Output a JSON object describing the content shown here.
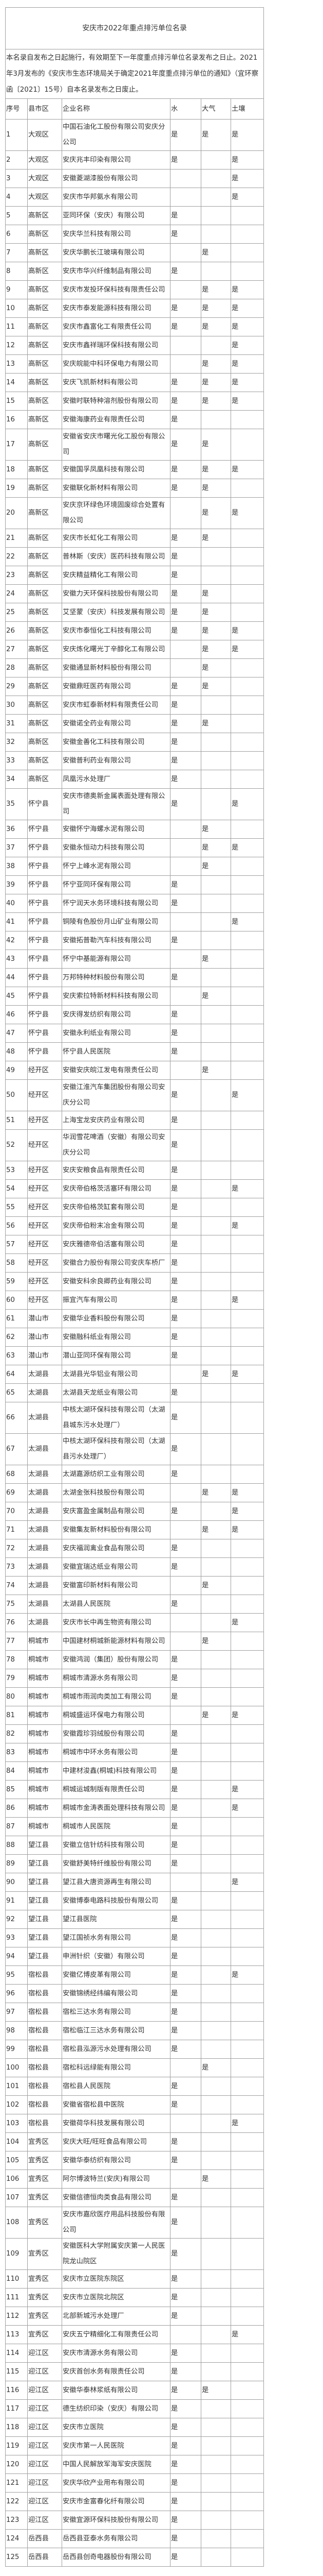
{
  "title": "安庆市2022年重点排污单位名录",
  "notice": "本名录自发布之日起施行，有效期至下一年度重点排污单位名录发布之日止。2021年3月发布的《安庆市生态环境局关于确定2021年度重点排污单位的通知》（宜环察函〔2021〕15号）自本名录发布之日废止。",
  "headers": [
    "序号",
    "县市区",
    "企业名称",
    "水",
    "大气",
    "土壤"
  ],
  "rows": [
    [
      "1",
      "大观区",
      "中国石油化工股份有限公司安庆分公司",
      "是",
      "是",
      "是"
    ],
    [
      "2",
      "大观区",
      "安庆兆丰印染有限公司",
      "是",
      "",
      "是"
    ],
    [
      "3",
      "大观区",
      "安徽菱湖漆股份有限公司",
      "",
      "",
      "是"
    ],
    [
      "4",
      "大观区",
      "安庆市华邦氨水有限公司",
      "",
      "",
      "是"
    ],
    [
      "5",
      "高新区",
      "亚同环保（安庆）有限公司",
      "是",
      "",
      ""
    ],
    [
      "6",
      "高新区",
      "安庆华兰科技有限公司",
      "是",
      "",
      ""
    ],
    [
      "7",
      "高新区",
      "安庆华鹏长江玻璃有限公司",
      "",
      "是",
      ""
    ],
    [
      "8",
      "高新区",
      "安庆市华兴纤维制品有限公司",
      "是",
      "",
      ""
    ],
    [
      "9",
      "高新区",
      "安庆市发投环保科技有限责任公司",
      "",
      "是",
      "是"
    ],
    [
      "10",
      "高新区",
      "安庆市泰发能源科技有限公司",
      "是",
      "是",
      "是"
    ],
    [
      "11",
      "高新区",
      "安庆市鑫富化工有限责任公司",
      "是",
      "是",
      "是"
    ],
    [
      "12",
      "高新区",
      "安庆市鑫祥瑞环保科技有限公司",
      "",
      "",
      "是"
    ],
    [
      "13",
      "高新区",
      "安庆皖能中科环保电力有限公司",
      "",
      "是",
      "是"
    ],
    [
      "14",
      "高新区",
      "安庆飞凯新材料有限公司",
      "是",
      "是",
      "是"
    ],
    [
      "15",
      "高新区",
      "安徽时联特种溶剂股份有限公司",
      "是",
      "是",
      "是"
    ],
    [
      "16",
      "高新区",
      "安徽海康药业有限责任公司",
      "是",
      "",
      ""
    ],
    [
      "17",
      "高新区",
      "安徽省安庆市曙光化工股份有限公司",
      "是",
      "是",
      ""
    ],
    [
      "18",
      "高新区",
      "安徽国孚凤凰科技有限公司",
      "是",
      "是",
      "是"
    ],
    [
      "19",
      "高新区",
      "安徽联化新材料有限公司",
      "是",
      "是",
      ""
    ],
    [
      "20",
      "高新区",
      "安庆京环绿色环境固废综合处置有限公司",
      "",
      "是",
      "是"
    ],
    [
      "21",
      "高新区",
      "安庆市长虹化工有限公司",
      "是",
      "是",
      ""
    ],
    [
      "22",
      "高新区",
      "普林斯（安庆）医药科技有限公司",
      "是",
      "",
      ""
    ],
    [
      "23",
      "高新区",
      "安庆精益精化工有限公司",
      "是",
      "",
      ""
    ],
    [
      "24",
      "高新区",
      "安徽力天环保科技股份有限公司",
      "是",
      "是",
      ""
    ],
    [
      "25",
      "高新区",
      "艾坚蒙（安庆）科技发展有限公司",
      "是",
      "是",
      ""
    ],
    [
      "26",
      "高新区",
      "安庆市泰恒化工科技有限公司",
      "是",
      "是",
      "是"
    ],
    [
      "27",
      "高新区",
      "安庆炼化曙光丁辛醇化工有限公司",
      "",
      "是",
      "是"
    ],
    [
      "28",
      "高新区",
      "安徽通显新材料股份有限公司",
      "",
      "是",
      ""
    ],
    [
      "29",
      "高新区",
      "安徽鼎旺医药有限公司",
      "是",
      "是",
      ""
    ],
    [
      "30",
      "高新区",
      "安庆市虹泰新材料有限责任公司",
      "是",
      "",
      ""
    ],
    [
      "31",
      "高新区",
      "安徽诺全药业有限公司",
      "是",
      "是",
      ""
    ],
    [
      "32",
      "高新区",
      "安徽金善化工科技有限公司",
      "是",
      "",
      ""
    ],
    [
      "33",
      "高新区",
      "安徽普利药业有限公司",
      "是",
      "",
      ""
    ],
    [
      "34",
      "高新区",
      "凤凰污水处理厂",
      "是",
      "",
      ""
    ],
    [
      "35",
      "怀宁县",
      "安庆市德奥新金属表面处理有限公司",
      "是",
      "",
      "是"
    ],
    [
      "36",
      "怀宁县",
      "安徽怀宁海螺水泥有限公司",
      "",
      "是",
      ""
    ],
    [
      "37",
      "怀宁县",
      "安徽永恒动力科技有限公司",
      "",
      "是",
      "是"
    ],
    [
      "38",
      "怀宁县",
      "怀宁上峰水泥有限公司",
      "",
      "是",
      ""
    ],
    [
      "39",
      "怀宁县",
      "怀宁亚同环保有限公司",
      "是",
      "",
      ""
    ],
    [
      "40",
      "怀宁县",
      "怀宁润天水务环境科技有限公司",
      "是",
      "",
      ""
    ],
    [
      "41",
      "怀宁县",
      "铜陵有色股份月山矿业有限公司",
      "",
      "",
      "是"
    ],
    [
      "42",
      "怀宁县",
      "安徽拓普勒汽车科技有限公司",
      "是",
      "",
      ""
    ],
    [
      "43",
      "怀宁县",
      "怀宁中基能源有限公司",
      "",
      "是",
      ""
    ],
    [
      "44",
      "怀宁县",
      "万邦特种材料股份有限公司",
      "是",
      "",
      ""
    ],
    [
      "45",
      "怀宁县",
      "安庆索拉特新材料科技有限公司",
      "",
      "是",
      ""
    ],
    [
      "46",
      "怀宁县",
      "安庆得发纺织有限公司",
      "是",
      "",
      ""
    ],
    [
      "47",
      "怀宁县",
      "安徽永利纸业有限公司",
      "是",
      "",
      ""
    ],
    [
      "48",
      "怀宁县",
      "怀宁县人民医院",
      "是",
      "",
      ""
    ],
    [
      "49",
      "经开区",
      "安徽安庆皖江发电有限责任公司",
      "",
      "是",
      ""
    ],
    [
      "50",
      "经开区",
      "安徽江淮汽车集团股份有限公司安庆分公司",
      "是",
      "",
      "是"
    ],
    [
      "51",
      "经开区",
      "上海宝龙安庆药业有限公司",
      "是",
      "",
      ""
    ],
    [
      "52",
      "经开区",
      "华润雪花啤酒（安徽）有限公司安庆分公司",
      "是",
      "",
      ""
    ],
    [
      "53",
      "经开区",
      "安庆安粮食品有限责任公司",
      "是",
      "",
      ""
    ],
    [
      "54",
      "经开区",
      "安庆帝伯格茨活塞环有限公司",
      "是",
      "",
      "是"
    ],
    [
      "55",
      "经开区",
      "安庆帝伯格茨缸套有限公司",
      "是",
      "",
      ""
    ],
    [
      "56",
      "经开区",
      "安庆帝伯粉末冶金有限公司",
      "是",
      "",
      "是"
    ],
    [
      "57",
      "经开区",
      "安庆雅德帝伯活塞有限公司",
      "是",
      "",
      ""
    ],
    [
      "58",
      "经开区",
      "安徽合力股份有限公司安庆车桥厂",
      "是",
      "",
      ""
    ],
    [
      "59",
      "经开区",
      "安徽安科余良卿药业有限公司",
      "是",
      "",
      ""
    ],
    [
      "60",
      "经开区",
      "振宜汽车有限公司",
      "是",
      "",
      "是"
    ],
    [
      "61",
      "潜山市",
      "安徽华业香料股份有限公司",
      "是",
      "",
      ""
    ],
    [
      "62",
      "潜山市",
      "安徽融科纸业有限公司",
      "是",
      "",
      ""
    ],
    [
      "63",
      "潜山市",
      "潜山亚同环保有限公司",
      "是",
      "",
      ""
    ],
    [
      "64",
      "太湖县",
      "太湖县光华铝业有限公司",
      "",
      "是",
      "是"
    ],
    [
      "65",
      "太湖县",
      "太湖县天龙纸业有限公司",
      "是",
      "",
      ""
    ],
    [
      "66",
      "太湖县",
      "中核太湖环保科技有限公司（太湖县城东污水处理厂）",
      "是",
      "",
      ""
    ],
    [
      "67",
      "太湖县",
      "中核太湖环保科技有限公司（太湖县污水处理厂）",
      "是",
      "",
      ""
    ],
    [
      "68",
      "太湖县",
      "太湖嘉源纺织工业有限公司",
      "是",
      "",
      ""
    ],
    [
      "69",
      "太湖县",
      "太湖金张科技股份有限公司",
      "",
      "是",
      "是"
    ],
    [
      "70",
      "太湖县",
      "安庆富盈金属制品有限公司",
      "是",
      "",
      "是"
    ],
    [
      "71",
      "太湖县",
      "安徽集友新材料股份有限公司",
      "",
      "是",
      "是"
    ],
    [
      "72",
      "太湖县",
      "安庆福润禽业食品有限公司",
      "是",
      "",
      ""
    ],
    [
      "73",
      "太湖县",
      "安徽宜瑞达纸业有限公司",
      "是",
      "",
      ""
    ],
    [
      "74",
      "太湖县",
      "安徽富印新材料有限公司",
      "",
      "是",
      ""
    ],
    [
      "75",
      "太湖县",
      "太湖县人民医院",
      "是",
      "",
      ""
    ],
    [
      "76",
      "太湖县",
      "安庆市长中再生物资有限公司",
      "",
      "",
      "是"
    ],
    [
      "77",
      "桐城市",
      "中国建材桐城新能源材料有限公司",
      "",
      "是",
      ""
    ],
    [
      "78",
      "桐城市",
      "安徽鸿润（集团）股份有限公司",
      "是",
      "",
      ""
    ],
    [
      "79",
      "桐城市",
      "桐城市清源水务有限公司",
      "是",
      "",
      ""
    ],
    [
      "80",
      "桐城市",
      "桐城市雨润肉类加工有限公司",
      "是",
      "",
      ""
    ],
    [
      "81",
      "桐城市",
      "桐城盛运环保电力有限公司",
      "",
      "是",
      "是"
    ],
    [
      "82",
      "桐城市",
      "安徽霞珍羽绒股份有限公司",
      "是",
      "",
      ""
    ],
    [
      "83",
      "桐城市",
      "桐城市中环水务有限公司",
      "是",
      "",
      ""
    ],
    [
      "84",
      "桐城市",
      "中建材浚鑫(桐城)科技有限公司",
      "是",
      "",
      ""
    ],
    [
      "85",
      "桐城市",
      "桐城运城制版有限责任公司",
      "是",
      "",
      "是"
    ],
    [
      "86",
      "桐城市",
      "桐城市金涛表面处理科技有限公司",
      "是",
      "",
      "是"
    ],
    [
      "87",
      "桐城市",
      "桐城市人民医院",
      "是",
      "",
      ""
    ],
    [
      "88",
      "望江县",
      "安徽立信针纺科技有限公司",
      "是",
      "",
      ""
    ],
    [
      "89",
      "望江县",
      "安徽舒美特纤维股份有限公司",
      "是",
      "",
      ""
    ],
    [
      "90",
      "望江县",
      "望江县大唐资源再生有限公司",
      "",
      "",
      "是"
    ],
    [
      "91",
      "望江县",
      "安徽博泰电路科技股份有限公司",
      "是",
      "",
      ""
    ],
    [
      "92",
      "望江县",
      "望江县医院",
      "是",
      "",
      ""
    ],
    [
      "93",
      "望江县",
      "望江国祯水务有限公司",
      "是",
      "",
      ""
    ],
    [
      "94",
      "望江县",
      "申洲针织（安徽）有限公司",
      "是",
      "",
      ""
    ],
    [
      "95",
      "宿松县",
      "安徽亿博皮革有限公司",
      "是",
      "",
      "是"
    ],
    [
      "96",
      "宿松县",
      "安徽锦绣经纬编有限公司",
      "是",
      "",
      ""
    ],
    [
      "97",
      "宿松县",
      "宿松三达水务有限公司",
      "是",
      "",
      ""
    ],
    [
      "98",
      "宿松县",
      "宿松临江三达水务有限公司",
      "是",
      "",
      ""
    ],
    [
      "99",
      "宿松县",
      "宿松县泓源污水处理有限公司",
      "是",
      "",
      ""
    ],
    [
      "100",
      "宿松县",
      "宿松科远绿能有限公司",
      "",
      "是",
      ""
    ],
    [
      "101",
      "宿松县",
      "宿松县人民医院",
      "是",
      "",
      ""
    ],
    [
      "102",
      "宿松县",
      "安徽省宿松县中医院",
      "是",
      "",
      ""
    ],
    [
      "103",
      "宿松县",
      "安徽荷华科技发展有限公司",
      "",
      "",
      "是"
    ],
    [
      "104",
      "宜秀区",
      "安庆大旺/旺旺食品有限公司",
      "是",
      "",
      ""
    ],
    [
      "105",
      "宜秀区",
      "安徽华泰纺织有限公司",
      "是",
      "",
      ""
    ],
    [
      "106",
      "宜秀区",
      "阿尔博波特兰(安庆)有限公司",
      "",
      "是",
      ""
    ],
    [
      "107",
      "宜秀区",
      "安徽信德恒肉类食品有限公司",
      "是",
      "",
      ""
    ],
    [
      "108",
      "宜秀区",
      "安庆市嘉欣医疗用品科技股份有限公司",
      "是",
      "",
      ""
    ],
    [
      "109",
      "宜秀区",
      "安徽医科大学附属安庆第一人民医院龙山院区",
      "是",
      "",
      ""
    ],
    [
      "110",
      "宜秀区",
      "安庆市立医院东院区",
      "是",
      "",
      ""
    ],
    [
      "111",
      "宜秀区",
      "安庆市立医院北院区",
      "是",
      "",
      ""
    ],
    [
      "112",
      "宜秀区",
      "北部新城污水处理厂",
      "是",
      "",
      ""
    ],
    [
      "113",
      "宜秀区",
      "安庆五宁精细化工有限责任公司",
      "",
      "",
      "是"
    ],
    [
      "114",
      "迎江区",
      "安庆市清源水务有限公司",
      "是",
      "",
      ""
    ],
    [
      "115",
      "迎江区",
      "安庆首创水务有限责任公司",
      "是",
      "",
      ""
    ],
    [
      "116",
      "迎江区",
      "安徽华泰林浆纸有限公司",
      "是",
      "是",
      ""
    ],
    [
      "117",
      "迎江区",
      "德生纺织印染（安庆）有限公司",
      "是",
      "",
      ""
    ],
    [
      "118",
      "迎江区",
      "安庆市立医院",
      "是",
      "",
      ""
    ],
    [
      "119",
      "迎江区",
      "安庆市第一人民医院",
      "是",
      "",
      ""
    ],
    [
      "120",
      "迎江区",
      "中国人民解放军海军安庆医院",
      "是",
      "",
      ""
    ],
    [
      "121",
      "迎江区",
      "安庆华欣产业用布有限公司",
      "是",
      "",
      ""
    ],
    [
      "122",
      "迎江区",
      "安庆市金富春化纤有限公司",
      "是",
      "",
      ""
    ],
    [
      "123",
      "迎江区",
      "安徽宜源环保科技股份有限公司",
      "是",
      "",
      ""
    ],
    [
      "124",
      "岳西县",
      "岳西县亚泰水务有限公司",
      "是",
      "",
      ""
    ],
    [
      "125",
      "岳西县",
      "岳西县创奇电器股份有限公司",
      "是",
      "",
      ""
    ]
  ]
}
